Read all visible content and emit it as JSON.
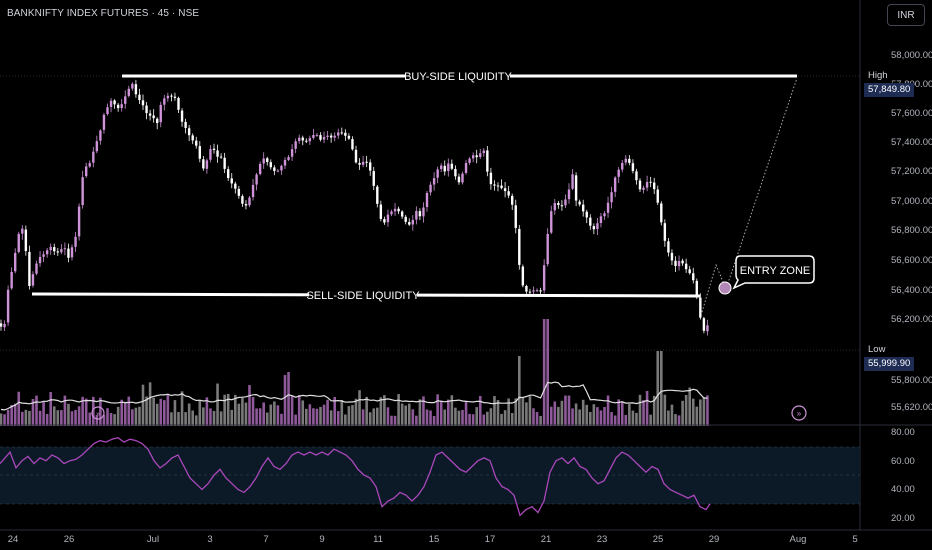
{
  "header": {
    "title": "BANKNIFTY INDEX FUTURES · 45 · NSE",
    "currency": "INR"
  },
  "price_axis": {
    "labels": [
      "58,000.00",
      "57,800.00",
      "57,600.00",
      "57,400.00",
      "57,200.00",
      "57,000.00",
      "56,800.00",
      "56,600.00",
      "56,400.00",
      "56,200.00",
      "56,000.00",
      "55,800.00",
      "55,620.00"
    ],
    "high": {
      "tag": "High",
      "value": "57,849.80"
    },
    "low": {
      "tag": "Low",
      "value": "55,999.90"
    }
  },
  "rsi_axis": {
    "labels": [
      "80.00",
      "60.00",
      "40.00",
      "20.00"
    ]
  },
  "x_axis": {
    "labels": [
      "24",
      "26",
      "Jul",
      "3",
      "7",
      "9",
      "11",
      "15",
      "17",
      "21",
      "23",
      "25",
      "29",
      "Aug",
      "5"
    ]
  },
  "annotations": {
    "buy_side": "BUY-SIDE LIQUIDITY",
    "sell_side": "SELL-SIDE LIQUIDITY",
    "entry_zone": "ENTRY ZONE"
  },
  "colors": {
    "up": "#ce93d8",
    "down": "#ffffff",
    "rsi": "#ab47bc",
    "vol_up": "#8e5a99",
    "vol_down": "#7a7a7a",
    "badge": "#1e2c54"
  },
  "chart_data": {
    "type": "candlestick",
    "symbol": "BANKNIFTY INDEX FUTURES",
    "interval": "45",
    "exchange": "NSE",
    "ylim": [
      55600,
      58100
    ],
    "levels": {
      "buy_side_liquidity": 57849.8,
      "sell_side_liquidity": 56360,
      "high": 57849.8,
      "low": 55999.9
    },
    "price_path": [
      [
        0,
        56230
      ],
      [
        3,
        56150
      ],
      [
        6,
        56160
      ],
      [
        10,
        56420
      ],
      [
        15,
        56580
      ],
      [
        20,
        56780
      ],
      [
        24,
        56820
      ],
      [
        28,
        56650
      ],
      [
        31,
        56430
      ],
      [
        35,
        56520
      ],
      [
        40,
        56620
      ],
      [
        46,
        56650
      ],
      [
        52,
        56700
      ],
      [
        58,
        56650
      ],
      [
        66,
        56700
      ],
      [
        70,
        56620
      ],
      [
        74,
        56700
      ],
      [
        78,
        56780
      ],
      [
        82,
        57050
      ],
      [
        86,
        57250
      ],
      [
        90,
        57230
      ],
      [
        94,
        57320
      ],
      [
        98,
        57400
      ],
      [
        102,
        57480
      ],
      [
        106,
        57600
      ],
      [
        110,
        57650
      ],
      [
        114,
        57700
      ],
      [
        118,
        57630
      ],
      [
        122,
        57640
      ],
      [
        126,
        57700
      ],
      [
        130,
        57760
      ],
      [
        134,
        57800
      ],
      [
        138,
        57720
      ],
      [
        142,
        57680
      ],
      [
        146,
        57640
      ],
      [
        150,
        57570
      ],
      [
        154,
        57600
      ],
      [
        158,
        57500
      ],
      [
        162,
        57650
      ],
      [
        166,
        57700
      ],
      [
        170,
        57720
      ],
      [
        174,
        57710
      ],
      [
        178,
        57700
      ],
      [
        182,
        57560
      ],
      [
        186,
        57520
      ],
      [
        190,
        57460
      ],
      [
        194,
        57420
      ],
      [
        198,
        57380
      ],
      [
        202,
        57280
      ],
      [
        206,
        57210
      ],
      [
        210,
        57320
      ],
      [
        214,
        57390
      ],
      [
        218,
        57300
      ],
      [
        222,
        57320
      ],
      [
        226,
        57230
      ],
      [
        230,
        57160
      ],
      [
        234,
        57120
      ],
      [
        238,
        57080
      ],
      [
        242,
        57020
      ],
      [
        246,
        56960
      ],
      [
        250,
        57000
      ],
      [
        254,
        57100
      ],
      [
        258,
        57180
      ],
      [
        262,
        57260
      ],
      [
        266,
        57300
      ],
      [
        270,
        57260
      ],
      [
        274,
        57220
      ],
      [
        278,
        57200
      ],
      [
        282,
        57230
      ],
      [
        286,
        57280
      ],
      [
        290,
        57300
      ],
      [
        294,
        57360
      ],
      [
        298,
        57420
      ],
      [
        302,
        57440
      ],
      [
        306,
        57400
      ],
      [
        310,
        57420
      ],
      [
        314,
        57450
      ],
      [
        318,
        57460
      ],
      [
        322,
        57420
      ],
      [
        326,
        57440
      ],
      [
        330,
        57450
      ],
      [
        334,
        57430
      ],
      [
        338,
        57460
      ],
      [
        342,
        57480
      ],
      [
        346,
        57450
      ],
      [
        350,
        57440
      ],
      [
        354,
        57360
      ],
      [
        358,
        57260
      ],
      [
        362,
        57250
      ],
      [
        366,
        57280
      ],
      [
        370,
        57260
      ],
      [
        374,
        57160
      ],
      [
        378,
        57020
      ],
      [
        382,
        56890
      ],
      [
        386,
        56860
      ],
      [
        390,
        56920
      ],
      [
        394,
        56940
      ],
      [
        398,
        56960
      ],
      [
        402,
        56920
      ],
      [
        406,
        56880
      ],
      [
        410,
        56840
      ],
      [
        414,
        56870
      ],
      [
        418,
        56940
      ],
      [
        422,
        56900
      ],
      [
        426,
        56980
      ],
      [
        430,
        57100
      ],
      [
        434,
        57130
      ],
      [
        438,
        57200
      ],
      [
        442,
        57260
      ],
      [
        446,
        57200
      ],
      [
        450,
        57260
      ],
      [
        454,
        57220
      ],
      [
        458,
        57160
      ],
      [
        462,
        57120
      ],
      [
        466,
        57250
      ],
      [
        470,
        57280
      ],
      [
        474,
        57320
      ],
      [
        478,
        57300
      ],
      [
        482,
        57330
      ],
      [
        486,
        57350
      ],
      [
        490,
        57160
      ],
      [
        494,
        57100
      ],
      [
        498,
        57120
      ],
      [
        502,
        57100
      ],
      [
        506,
        57080
      ],
      [
        510,
        57050
      ],
      [
        514,
        56980
      ],
      [
        518,
        56800
      ],
      [
        522,
        56500
      ],
      [
        526,
        56400
      ],
      [
        530,
        56390
      ],
      [
        534,
        56400
      ],
      [
        538,
        56410
      ],
      [
        542,
        56380
      ],
      [
        546,
        56580
      ],
      [
        550,
        56820
      ],
      [
        554,
        56980
      ],
      [
        558,
        57000
      ],
      [
        562,
        56960
      ],
      [
        566,
        57000
      ],
      [
        570,
        57060
      ],
      [
        574,
        57200
      ],
      [
        578,
        57000
      ],
      [
        582,
        56980
      ],
      [
        586,
        56920
      ],
      [
        590,
        56880
      ],
      [
        594,
        56800
      ],
      [
        598,
        56840
      ],
      [
        602,
        56900
      ],
      [
        606,
        56920
      ],
      [
        610,
        57000
      ],
      [
        614,
        57080
      ],
      [
        618,
        57200
      ],
      [
        622,
        57230
      ],
      [
        626,
        57300
      ],
      [
        630,
        57280
      ],
      [
        634,
        57220
      ],
      [
        638,
        57150
      ],
      [
        642,
        57080
      ],
      [
        646,
        57100
      ],
      [
        650,
        57150
      ],
      [
        654,
        57120
      ],
      [
        658,
        57050
      ],
      [
        662,
        56900
      ],
      [
        666,
        56750
      ],
      [
        670,
        56660
      ],
      [
        674,
        56600
      ],
      [
        678,
        56560
      ],
      [
        682,
        56620
      ],
      [
        686,
        56560
      ],
      [
        690,
        56530
      ],
      [
        694,
        56500
      ],
      [
        698,
        56380
      ],
      [
        702,
        56220
      ],
      [
        706,
        56120
      ],
      [
        710,
        56180
      ]
    ],
    "rsi": [
      [
        0,
        58
      ],
      [
        5,
        62
      ],
      [
        10,
        66
      ],
      [
        16,
        55
      ],
      [
        22,
        60
      ],
      [
        28,
        63
      ],
      [
        34,
        58
      ],
      [
        40,
        62
      ],
      [
        46,
        60
      ],
      [
        52,
        64
      ],
      [
        58,
        62
      ],
      [
        64,
        58
      ],
      [
        70,
        60
      ],
      [
        76,
        61
      ],
      [
        82,
        64
      ],
      [
        88,
        68
      ],
      [
        94,
        72
      ],
      [
        100,
        74
      ],
      [
        106,
        73
      ],
      [
        112,
        75
      ],
      [
        118,
        76
      ],
      [
        124,
        73
      ],
      [
        130,
        75
      ],
      [
        136,
        74
      ],
      [
        142,
        72
      ],
      [
        148,
        68
      ],
      [
        154,
        60
      ],
      [
        160,
        55
      ],
      [
        166,
        58
      ],
      [
        172,
        62
      ],
      [
        178,
        64
      ],
      [
        184,
        56
      ],
      [
        190,
        48
      ],
      [
        196,
        44
      ],
      [
        202,
        40
      ],
      [
        208,
        44
      ],
      [
        214,
        50
      ],
      [
        220,
        54
      ],
      [
        226,
        48
      ],
      [
        232,
        44
      ],
      [
        238,
        40
      ],
      [
        244,
        38
      ],
      [
        250,
        42
      ],
      [
        256,
        48
      ],
      [
        262,
        56
      ],
      [
        268,
        62
      ],
      [
        274,
        56
      ],
      [
        280,
        54
      ],
      [
        286,
        58
      ],
      [
        292,
        64
      ],
      [
        298,
        66
      ],
      [
        304,
        64
      ],
      [
        310,
        66
      ],
      [
        316,
        64
      ],
      [
        322,
        66
      ],
      [
        328,
        64
      ],
      [
        334,
        68
      ],
      [
        340,
        66
      ],
      [
        346,
        64
      ],
      [
        352,
        60
      ],
      [
        358,
        54
      ],
      [
        364,
        50
      ],
      [
        370,
        48
      ],
      [
        376,
        42
      ],
      [
        382,
        28
      ],
      [
        388,
        32
      ],
      [
        394,
        34
      ],
      [
        400,
        38
      ],
      [
        406,
        36
      ],
      [
        412,
        32
      ],
      [
        418,
        36
      ],
      [
        424,
        42
      ],
      [
        430,
        52
      ],
      [
        436,
        64
      ],
      [
        442,
        66
      ],
      [
        448,
        62
      ],
      [
        454,
        58
      ],
      [
        460,
        54
      ],
      [
        466,
        52
      ],
      [
        472,
        56
      ],
      [
        478,
        60
      ],
      [
        484,
        62
      ],
      [
        490,
        60
      ],
      [
        496,
        48
      ],
      [
        502,
        42
      ],
      [
        508,
        40
      ],
      [
        514,
        36
      ],
      [
        520,
        22
      ],
      [
        526,
        26
      ],
      [
        532,
        28
      ],
      [
        538,
        24
      ],
      [
        544,
        32
      ],
      [
        550,
        52
      ],
      [
        556,
        60
      ],
      [
        562,
        62
      ],
      [
        568,
        58
      ],
      [
        574,
        62
      ],
      [
        580,
        56
      ],
      [
        586,
        54
      ],
      [
        592,
        48
      ],
      [
        598,
        44
      ],
      [
        604,
        46
      ],
      [
        610,
        54
      ],
      [
        616,
        62
      ],
      [
        622,
        66
      ],
      [
        628,
        64
      ],
      [
        634,
        60
      ],
      [
        640,
        56
      ],
      [
        646,
        52
      ],
      [
        652,
        56
      ],
      [
        658,
        54
      ],
      [
        664,
        44
      ],
      [
        670,
        40
      ],
      [
        676,
        38
      ],
      [
        682,
        36
      ],
      [
        688,
        34
      ],
      [
        694,
        36
      ],
      [
        700,
        28
      ],
      [
        706,
        26
      ],
      [
        710,
        30
      ]
    ]
  }
}
